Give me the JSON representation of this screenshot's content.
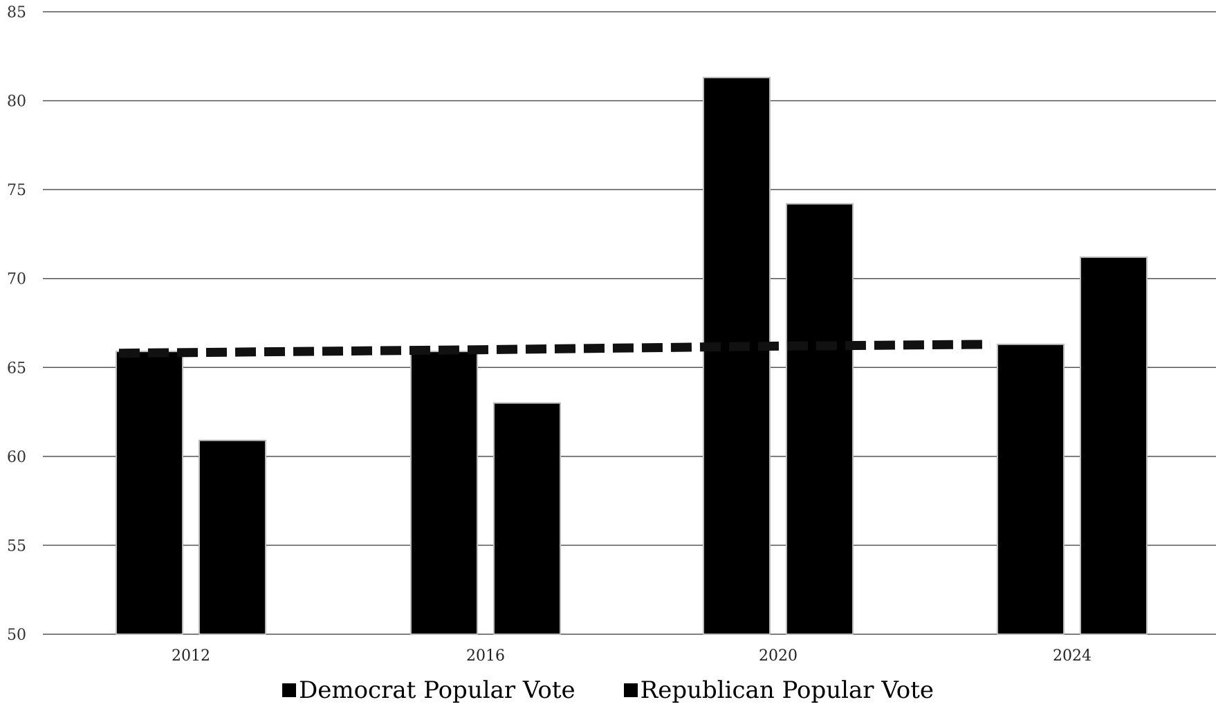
{
  "chart_data": {
    "type": "bar",
    "categories": [
      "2012",
      "2016",
      "2020",
      "2024"
    ],
    "series": [
      {
        "name": "Democrat Popular Vote",
        "values": [
          65.9,
          65.9,
          81.3,
          66.3
        ],
        "color": "#000000"
      },
      {
        "name": "Republican Popular Vote",
        "values": [
          60.9,
          63.0,
          74.2,
          71.2
        ],
        "color": "#000000"
      }
    ],
    "reference_line": {
      "values": [
        65.8,
        66.0,
        66.2,
        66.3
      ],
      "style": "dashed"
    },
    "ylim": [
      50,
      85
    ],
    "yticks": [
      "50",
      "55",
      "60",
      "65",
      "70",
      "75",
      "80",
      "85"
    ],
    "grid": true,
    "legend": "bottom-center"
  }
}
